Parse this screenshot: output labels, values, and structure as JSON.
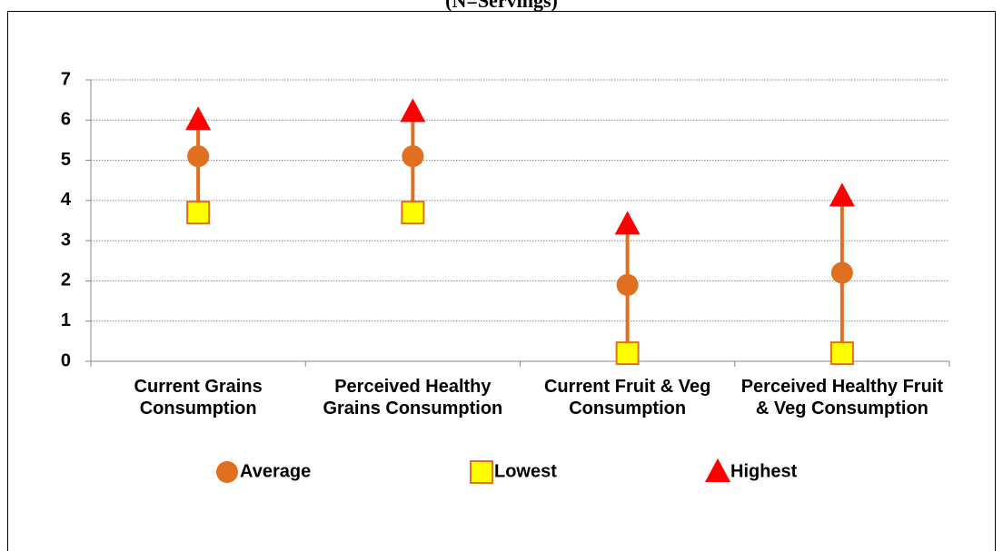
{
  "chart_data": {
    "type": "dot",
    "title": "(N=Servings)",
    "categories": [
      "Current Grains Consumption",
      "Perceived Healthy Grains Consumption",
      "Current Fruit & Veg Consumption",
      "Perceived Healthy Fruit & Veg Consumption"
    ],
    "series": [
      {
        "name": "Average",
        "color": "#e07020",
        "marker": "circle",
        "values": [
          5.1,
          5.1,
          1.9,
          2.2
        ]
      },
      {
        "name": "Lowest",
        "color": "#ffff00",
        "marker": "square",
        "values": [
          3.7,
          3.7,
          0.2,
          0.2
        ]
      },
      {
        "name": "Highest",
        "color": "#ff0000",
        "marker": "triangle",
        "values": [
          6.0,
          6.2,
          3.4,
          4.1
        ]
      }
    ],
    "range_color": "#e07020",
    "ylim": [
      0,
      7
    ],
    "yticks": [
      0,
      1,
      2,
      3,
      4,
      5,
      6,
      7
    ],
    "grid": true
  }
}
